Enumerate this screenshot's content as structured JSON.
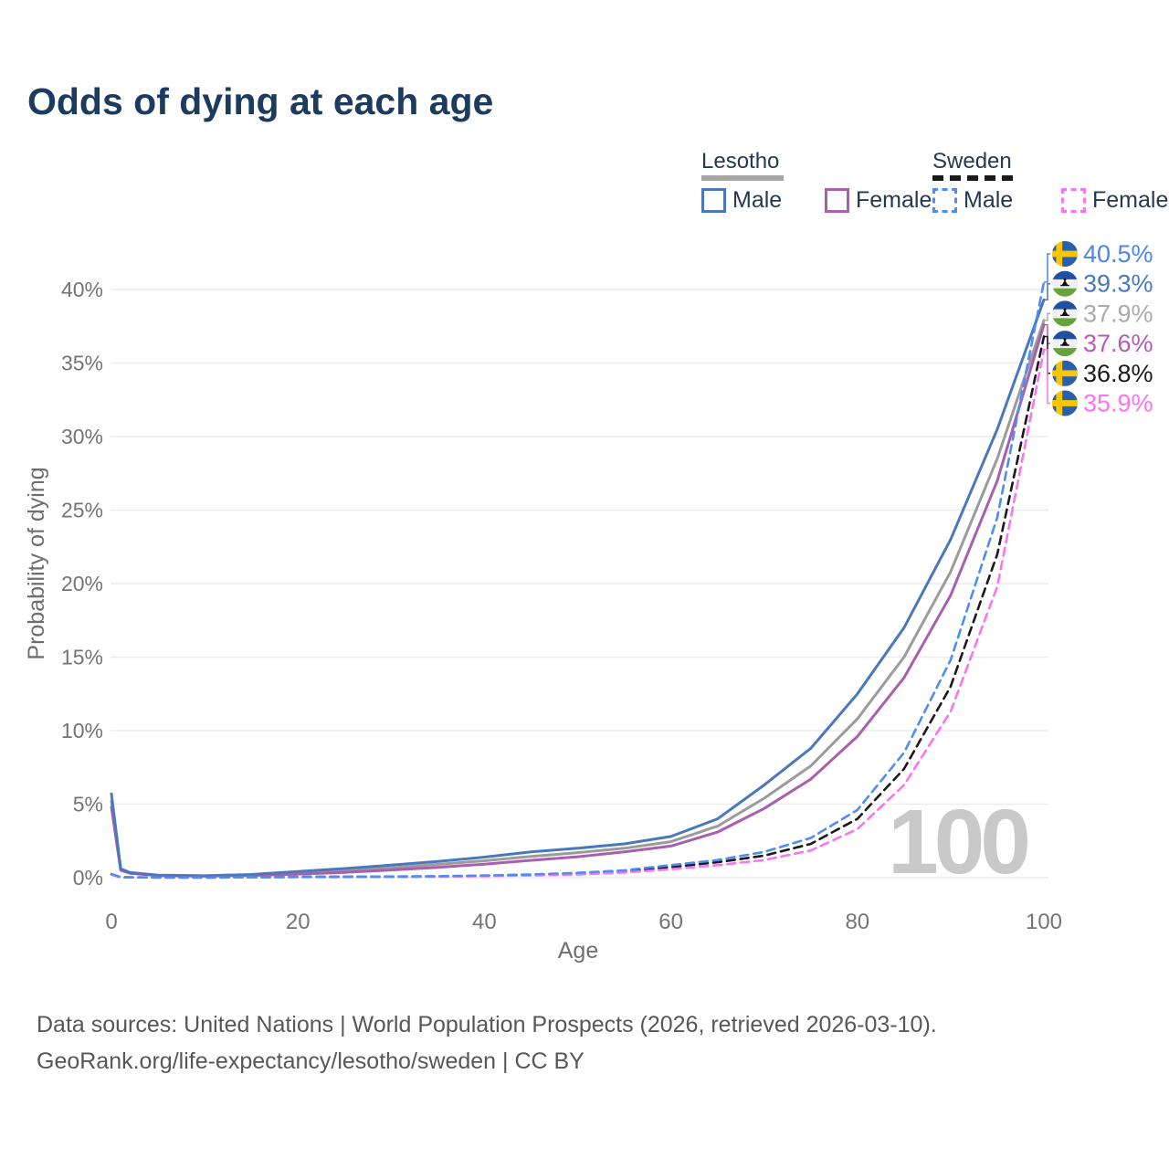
{
  "title": "Odds of dying at each age",
  "legend": {
    "groups": [
      {
        "label": "Lesotho",
        "line": "solid",
        "line_color": "#a6a6a6",
        "items": [
          {
            "label": "Male",
            "color": "#4a78bd",
            "line": "solid"
          },
          {
            "label": "Female",
            "color": "#a75fae",
            "line": "solid"
          }
        ]
      },
      {
        "label": "Sweden",
        "line": "dashed",
        "line_color": "#1a1a1a",
        "items": [
          {
            "label": "Male",
            "color": "#4d8df5",
            "line": "dashed"
          },
          {
            "label": "Female",
            "color": "#fb74ef",
            "line": "dashed"
          }
        ]
      }
    ]
  },
  "chart_data": {
    "type": "line",
    "title": "Odds of dying at each age",
    "xlabel": "Age",
    "ylabel": "Probability of dying",
    "hover_age": "100",
    "xlim": [
      0,
      100
    ],
    "ylim_percent": [
      0,
      42
    ],
    "grid": "horizontal",
    "legend_position": "top-right",
    "xticks": [
      {
        "value": 0,
        "label": "0"
      },
      {
        "value": 20,
        "label": "20"
      },
      {
        "value": 40,
        "label": "40"
      },
      {
        "value": 60,
        "label": "60"
      },
      {
        "value": 80,
        "label": "80"
      },
      {
        "value": 100,
        "label": "100"
      }
    ],
    "yticks": [
      {
        "value": 0,
        "label": "0%"
      },
      {
        "value": 5,
        "label": "5%"
      },
      {
        "value": 10,
        "label": "10%"
      },
      {
        "value": 15,
        "label": "15%"
      },
      {
        "value": 20,
        "label": "20%"
      },
      {
        "value": 25,
        "label": "25%"
      },
      {
        "value": 30,
        "label": "30%"
      },
      {
        "value": 35,
        "label": "35%"
      },
      {
        "value": 40,
        "label": "40%"
      }
    ],
    "x": [
      0,
      1,
      2,
      5,
      10,
      15,
      20,
      25,
      30,
      35,
      40,
      45,
      50,
      55,
      60,
      65,
      70,
      75,
      80,
      85,
      90,
      95,
      100
    ],
    "series": [
      {
        "name": "Lesotho Total",
        "country": "Lesotho",
        "sex": "Total",
        "color": "#9b9b9b",
        "dash": null,
        "values": [
          5.2,
          0.55,
          0.32,
          0.15,
          0.12,
          0.18,
          0.32,
          0.48,
          0.67,
          0.9,
          1.15,
          1.45,
          1.7,
          2.0,
          2.45,
          3.5,
          5.4,
          7.6,
          10.8,
          15.0,
          20.8,
          28.5,
          37.9
        ]
      },
      {
        "name": "Lesotho Female",
        "country": "Lesotho",
        "sex": "Female",
        "color": "#a75fae",
        "dash": null,
        "values": [
          4.8,
          0.5,
          0.3,
          0.14,
          0.11,
          0.15,
          0.24,
          0.36,
          0.52,
          0.7,
          0.92,
          1.18,
          1.42,
          1.75,
          2.15,
          3.1,
          4.7,
          6.7,
          9.6,
          13.6,
          19.2,
          27.0,
          37.6
        ]
      },
      {
        "name": "Lesotho Male",
        "country": "Lesotho",
        "sex": "Male",
        "color": "#4a78bd",
        "dash": null,
        "values": [
          5.7,
          0.6,
          0.35,
          0.17,
          0.13,
          0.22,
          0.42,
          0.62,
          0.85,
          1.1,
          1.4,
          1.75,
          2.0,
          2.3,
          2.8,
          4.0,
          6.3,
          8.8,
          12.5,
          17.0,
          23.0,
          30.5,
          39.3
        ]
      },
      {
        "name": "Sweden Total",
        "country": "Sweden",
        "sex": "Total",
        "color": "#1a1a1a",
        "dash": "9 6",
        "values": [
          0.22,
          0.03,
          0.02,
          0.01,
          0.01,
          0.02,
          0.05,
          0.06,
          0.07,
          0.09,
          0.13,
          0.19,
          0.28,
          0.43,
          0.72,
          1.05,
          1.5,
          2.3,
          4.0,
          7.4,
          13.0,
          22.0,
          36.8
        ]
      },
      {
        "name": "Sweden Female",
        "country": "Sweden",
        "sex": "Female",
        "color": "#fb74ef",
        "dash": "9 6",
        "values": [
          0.2,
          0.03,
          0.02,
          0.01,
          0.01,
          0.02,
          0.03,
          0.04,
          0.05,
          0.07,
          0.1,
          0.15,
          0.22,
          0.35,
          0.58,
          0.85,
          1.2,
          1.85,
          3.3,
          6.3,
          11.3,
          19.8,
          35.9
        ]
      },
      {
        "name": "Sweden Male",
        "country": "Sweden",
        "sex": "Male",
        "color": "#4d8df5",
        "dash": "9 6",
        "values": [
          0.25,
          0.04,
          0.02,
          0.01,
          0.01,
          0.03,
          0.06,
          0.07,
          0.08,
          0.1,
          0.15,
          0.22,
          0.33,
          0.5,
          0.85,
          1.2,
          1.75,
          2.7,
          4.6,
          8.5,
          14.8,
          24.5,
          40.5
        ]
      }
    ],
    "end_labels": [
      {
        "country": "Sweden",
        "sex": "Male",
        "flag": "sweden",
        "label": "40.5%",
        "value": 40.5,
        "color": "#4c86ea"
      },
      {
        "country": "Lesotho",
        "sex": "Male",
        "flag": "lesotho",
        "label": "39.3%",
        "value": 39.3,
        "color": "#4a78bd"
      },
      {
        "country": "Lesotho",
        "sex": "Total",
        "flag": "lesotho",
        "label": "37.9%",
        "value": 37.9,
        "color": "#ababab"
      },
      {
        "country": "Lesotho",
        "sex": "Female",
        "flag": "lesotho",
        "label": "37.6%",
        "value": 37.6,
        "color": "#b45cb8"
      },
      {
        "country": "Sweden",
        "sex": "Total",
        "flag": "sweden",
        "label": "36.8%",
        "value": 36.8,
        "color": "#1a1a1a"
      },
      {
        "country": "Sweden",
        "sex": "Female",
        "flag": "sweden",
        "label": "35.9%",
        "value": 35.9,
        "color": "#fb74ef"
      }
    ]
  },
  "footer": {
    "line1": "Data sources: United Nations | World Population Prospects (2026, retrieved 2026-03-10).",
    "line2": "GeoRank.org/life-expectancy/lesotho/sweden | CC BY"
  }
}
